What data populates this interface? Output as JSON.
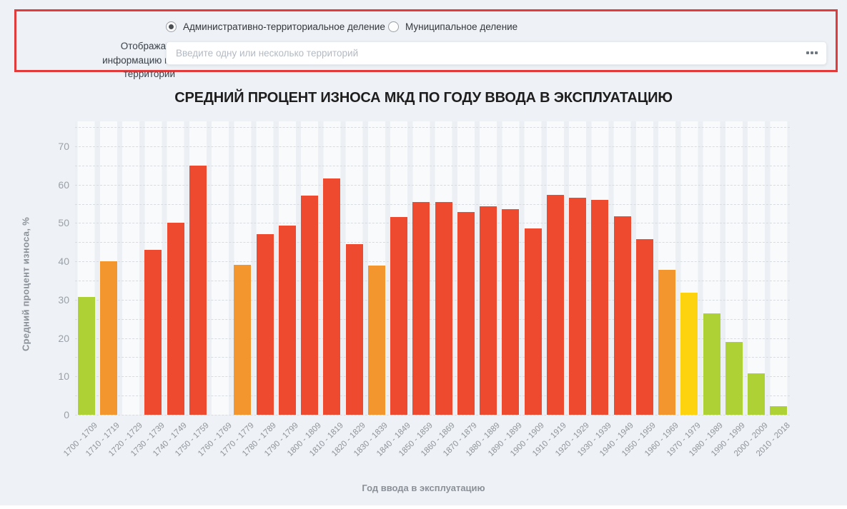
{
  "page": {
    "background": "#eef1f5"
  },
  "filter_panel": {
    "border_color": "#e23b3c",
    "label": "Отображать информацию по территории",
    "radios": [
      {
        "label": "Административно-территориальное деление",
        "selected": true
      },
      {
        "label": "Муниципальное деление",
        "selected": false
      }
    ],
    "territory_input": {
      "value": "",
      "placeholder": "Введите одну или несколько территорий"
    },
    "more_icon": "ellipsis-icon"
  },
  "chart_data": {
    "type": "bar",
    "title": "СРЕДНИЙ ПРОЦЕНТ ИЗНОСА МКД ПО ГОДУ ВВОДА В ЭКСПЛУАТАЦИЮ",
    "xlabel": "Год ввода в эксплуатацию",
    "ylabel": "Средний процент износа, %",
    "ylim": [
      0,
      76.5
    ],
    "yticks": [
      0,
      10,
      20,
      30,
      40,
      50,
      60,
      70
    ],
    "grid_step": 5,
    "grid": true,
    "legend": "none",
    "categories": [
      "1700 - 1709",
      "1710 - 1719",
      "1720 - 1729",
      "1730 - 1739",
      "1740 - 1749",
      "1750 - 1759",
      "1760 - 1769",
      "1770 - 1779",
      "1780 - 1789",
      "1790 - 1799",
      "1800 - 1809",
      "1810 - 1819",
      "1820 - 1829",
      "1830 - 1839",
      "1840 - 1849",
      "1850 - 1859",
      "1860 - 1869",
      "1870 - 1879",
      "1880 - 1889",
      "1890 - 1899",
      "1900 - 1909",
      "1910 - 1919",
      "1920 - 1929",
      "1930 - 1939",
      "1940 - 1949",
      "1950 - 1959",
      "1960 - 1969",
      "1970 - 1979",
      "1980 - 1989",
      "1990 - 1999",
      "2000 - 2009",
      "2010 - 2018"
    ],
    "values": [
      30.8,
      40,
      0,
      43,
      50,
      65,
      0,
      39.1,
      47,
      49.4,
      57.2,
      61.6,
      44.4,
      38.9,
      51.6,
      55.4,
      55.5,
      52.8,
      54.3,
      53.6,
      48.5,
      57.3,
      56.5,
      56,
      51.8,
      45.8,
      37.8,
      31.8,
      26.4,
      18.9,
      10.8,
      2.3
    ],
    "colors": [
      "green",
      "orange",
      "none",
      "red",
      "red",
      "red",
      "none",
      "orange",
      "red",
      "red",
      "red",
      "red",
      "red",
      "orange",
      "red",
      "red",
      "red",
      "red",
      "red",
      "red",
      "red",
      "red",
      "red",
      "red",
      "red",
      "red",
      "orange",
      "yellow",
      "green",
      "green",
      "green",
      "green"
    ],
    "palette": {
      "green": "#aed136",
      "orange": "#f4962e",
      "red": "#ee4a2f",
      "yellow": "#fdd20f"
    }
  }
}
